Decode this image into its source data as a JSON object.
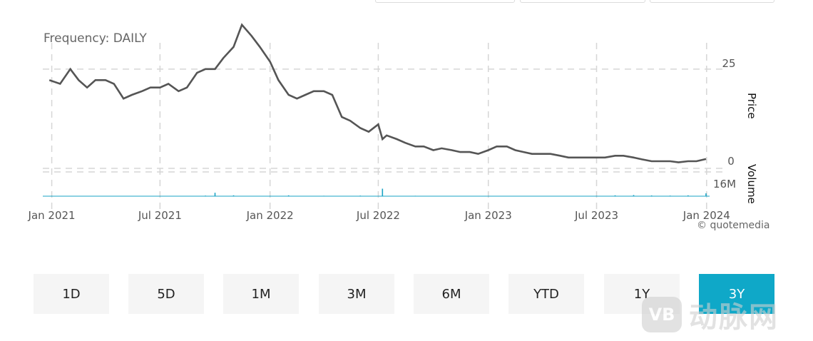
{
  "chart": {
    "frequency_label": "Frequency: DAILY",
    "credit": "© quotemedia",
    "price_axis_title": "Price",
    "volume_axis_title": "Volume"
  },
  "range_buttons": [
    {
      "label": "1D",
      "active": false
    },
    {
      "label": "5D",
      "active": false
    },
    {
      "label": "1M",
      "active": false
    },
    {
      "label": "3M",
      "active": false
    },
    {
      "label": "6M",
      "active": false
    },
    {
      "label": "YTD",
      "active": false
    },
    {
      "label": "1Y",
      "active": false
    },
    {
      "label": "3Y",
      "active": true
    }
  ],
  "watermark": {
    "logo": "VB",
    "text": "动脉网"
  },
  "colors": {
    "price_line": "#555555",
    "volume_bar": "#1aa3c4",
    "accent": "#0fa8c8",
    "grid": "#d6d6d6"
  },
  "chart_data": {
    "type": "line",
    "frequency": "DAILY",
    "x_tick_labels": [
      "Jan 2021",
      "Jul 2021",
      "Jan 2022",
      "Jul 2022",
      "Jan 2023",
      "Jul 2023",
      "Jan 2024"
    ],
    "price_tick_labels": [
      "25",
      "0"
    ],
    "volume_tick_labels": [
      "16M"
    ],
    "price_ylim": [
      0,
      36
    ],
    "volume_ylim": [
      0,
      16
    ],
    "grid": true,
    "series": [
      {
        "type": "line",
        "x": [
          "2020-12-28",
          "2021-01-15",
          "2021-02-01",
          "2021-02-15",
          "2021-03-01",
          "2021-03-15",
          "2021-04-01",
          "2021-04-15",
          "2021-05-01",
          "2021-05-15",
          "2021-06-01",
          "2021-06-15",
          "2021-07-01",
          "2021-07-15",
          "2021-08-01",
          "2021-08-15",
          "2021-09-01",
          "2021-09-15",
          "2021-10-01",
          "2021-10-15",
          "2021-11-01",
          "2021-11-15",
          "2021-12-01",
          "2021-12-15",
          "2022-01-01",
          "2022-01-15",
          "2022-02-01",
          "2022-02-15",
          "2022-03-01",
          "2022-03-15",
          "2022-04-01",
          "2022-04-15",
          "2022-05-01",
          "2022-05-15",
          "2022-06-01",
          "2022-06-15",
          "2022-07-01",
          "2022-07-08",
          "2022-07-15",
          "2022-08-01",
          "2022-08-15",
          "2022-09-01",
          "2022-09-15",
          "2022-10-01",
          "2022-10-15",
          "2022-11-01",
          "2022-11-15",
          "2022-12-01",
          "2022-12-15",
          "2023-01-01",
          "2023-01-15",
          "2023-02-01",
          "2023-02-15",
          "2023-03-01",
          "2023-03-15",
          "2023-04-01",
          "2023-04-15",
          "2023-05-01",
          "2023-05-15",
          "2023-06-01",
          "2023-06-15",
          "2023-07-01",
          "2023-07-15",
          "2023-08-01",
          "2023-08-15",
          "2023-09-01",
          "2023-09-15",
          "2023-10-01",
          "2023-10-15",
          "2023-11-01",
          "2023-11-15",
          "2023-12-01",
          "2023-12-15",
          "2023-12-31"
        ],
        "y": [
          22,
          21,
          25,
          22,
          20,
          22,
          22,
          21,
          17,
          18,
          19,
          20,
          20,
          21,
          19,
          20,
          24,
          25,
          25,
          28,
          31,
          37,
          34,
          31,
          27,
          22,
          18,
          17,
          18,
          19,
          19,
          18,
          12,
          11,
          9,
          8,
          10,
          6,
          7,
          6,
          5,
          4,
          4,
          3,
          3.5,
          3,
          2.5,
          2.5,
          2,
          3,
          4,
          4,
          3,
          2.5,
          2,
          2,
          2,
          1.5,
          1,
          1,
          1,
          1,
          1,
          1.5,
          1.5,
          1,
          0.5,
          0,
          0,
          0,
          -0.3,
          0,
          0,
          0.6
        ]
      },
      {
        "type": "bar",
        "name": "Volume",
        "x": [
          "2021-01-01",
          "2021-03-01",
          "2021-05-01",
          "2021-07-01",
          "2021-09-15",
          "2021-10-01",
          "2021-11-01",
          "2022-01-01",
          "2022-02-01",
          "2022-04-01",
          "2022-06-01",
          "2022-07-08",
          "2022-09-01",
          "2022-12-01",
          "2023-03-01",
          "2023-05-01",
          "2023-07-01",
          "2023-08-01",
          "2023-09-01",
          "2023-10-01",
          "2023-11-01",
          "2023-12-01",
          "2023-12-31"
        ],
        "y": [
          0.6,
          0.5,
          0.4,
          0.5,
          0.8,
          4.8,
          1.2,
          0.6,
          1.2,
          0.6,
          0.8,
          10.5,
          0.6,
          0.5,
          0.4,
          0.5,
          0.6,
          1.2,
          1.6,
          1.0,
          0.8,
          1.2,
          4.0
        ]
      }
    ]
  }
}
